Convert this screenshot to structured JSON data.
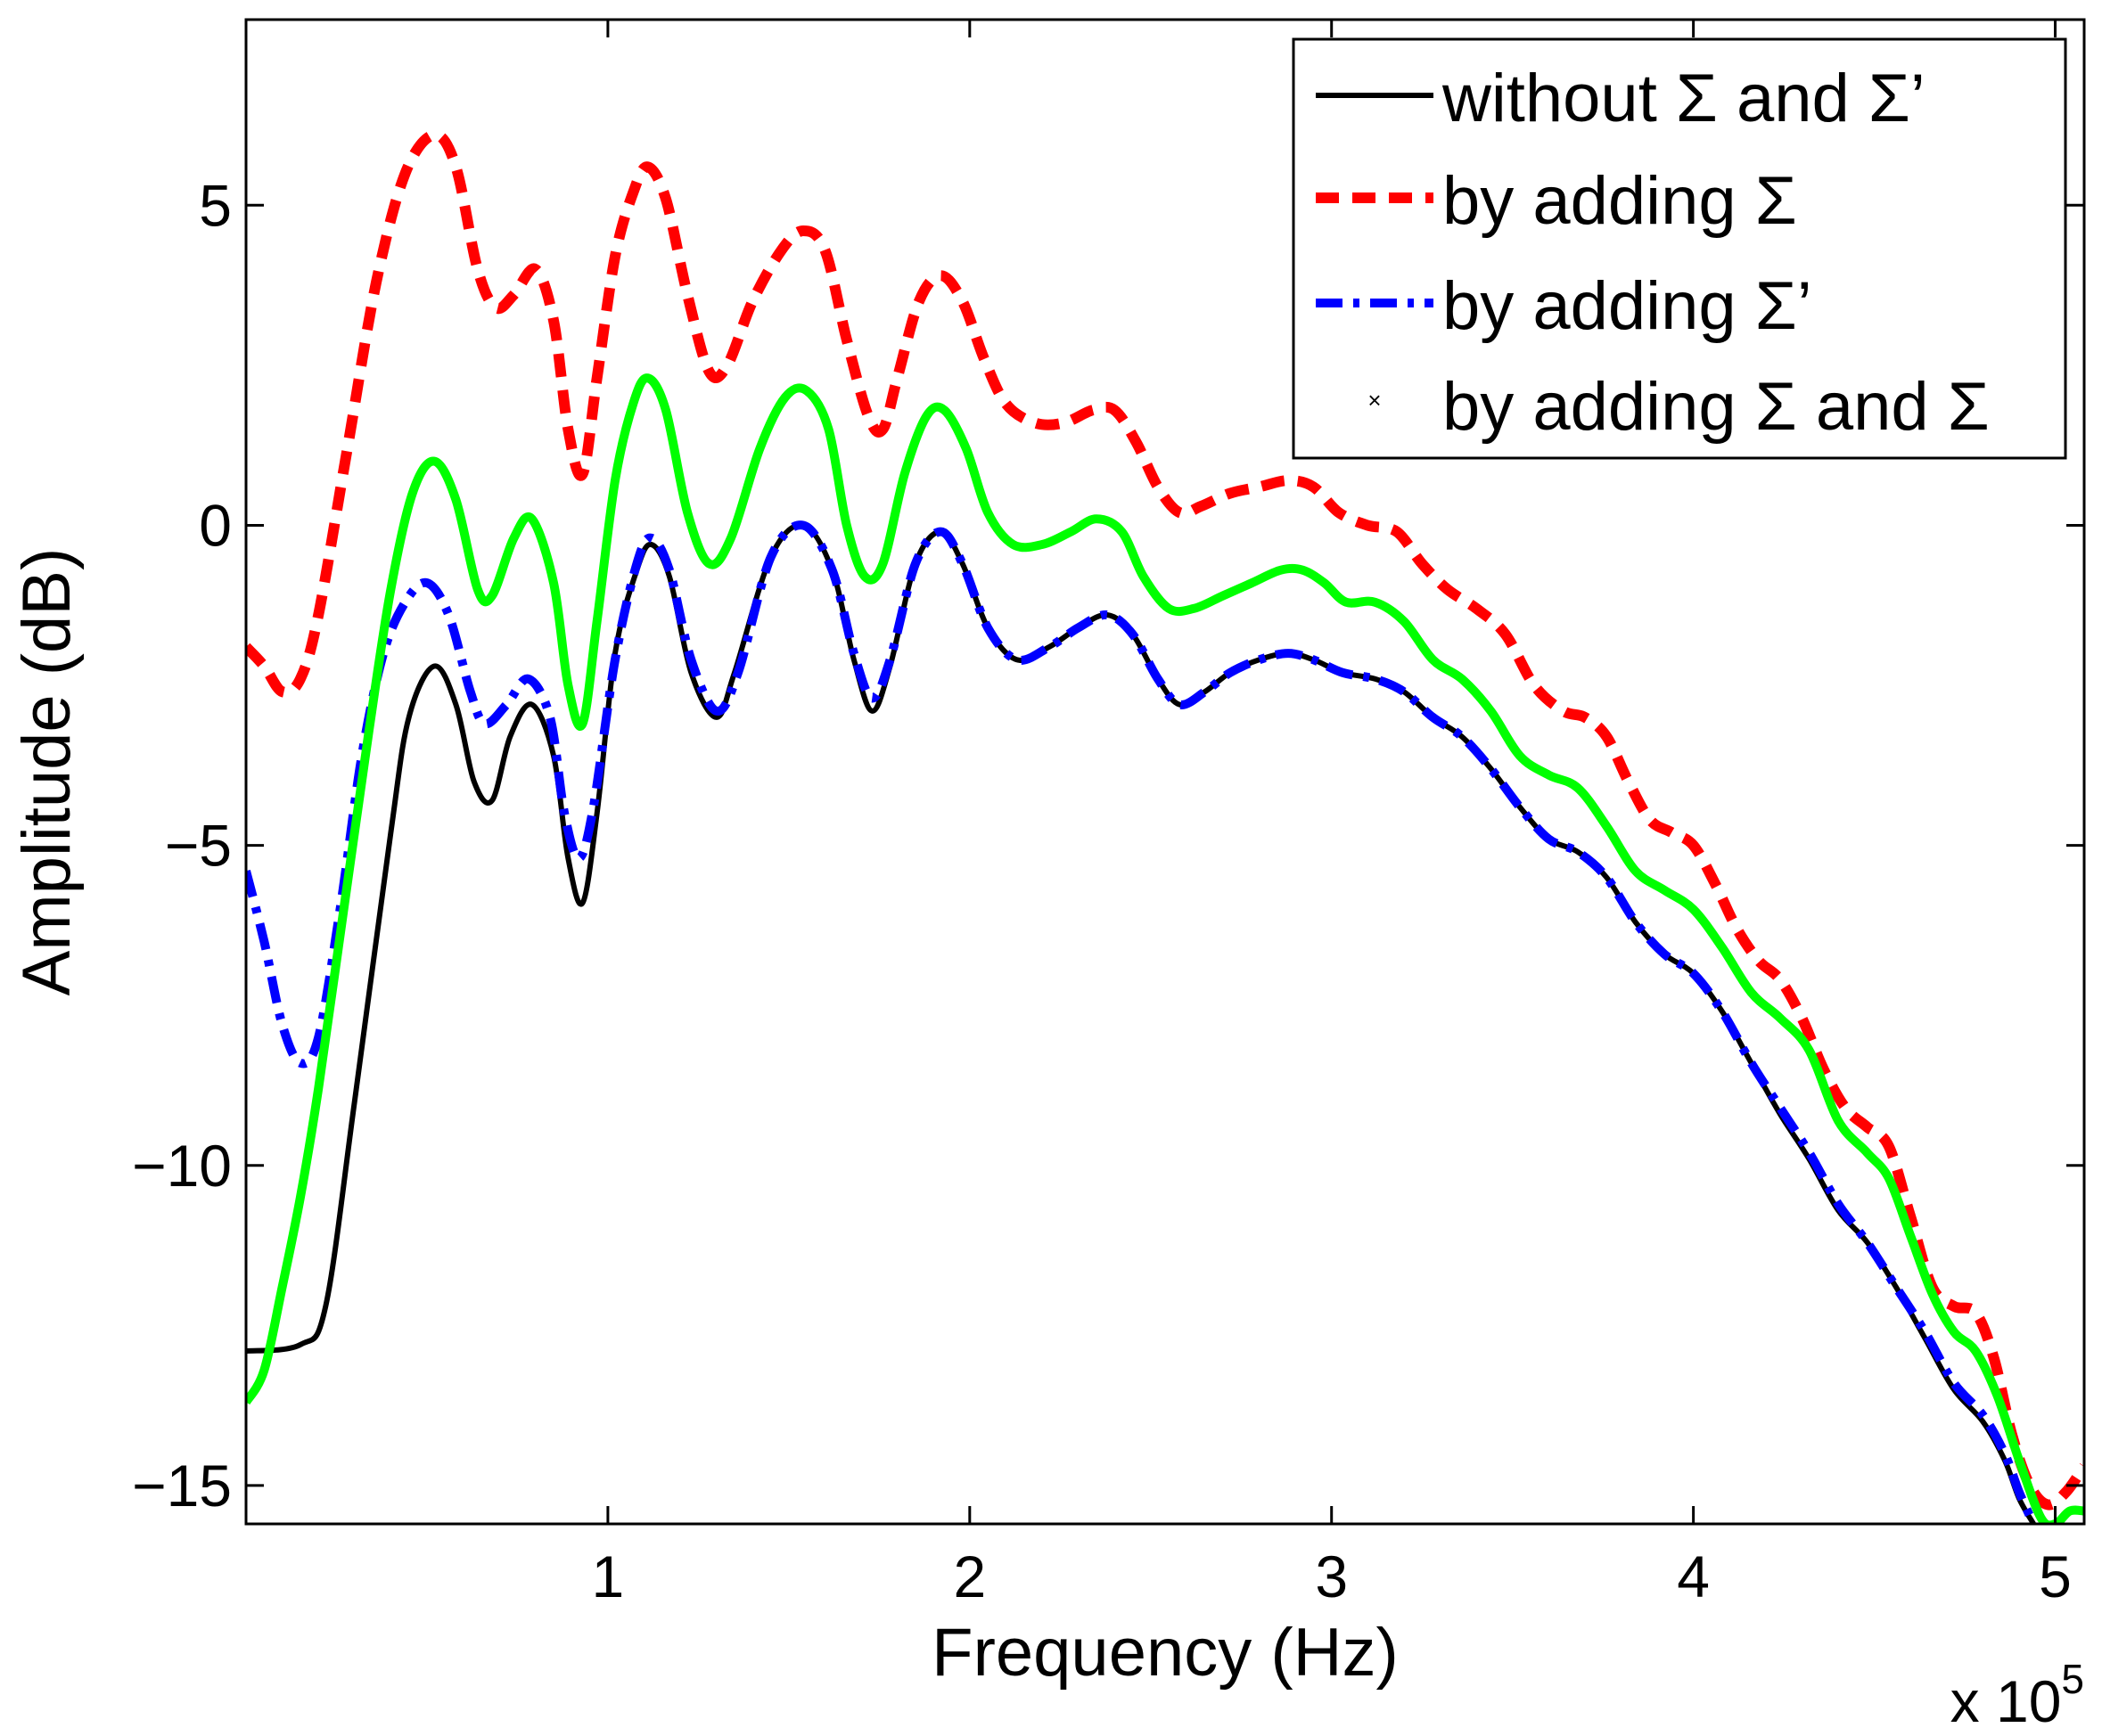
{
  "chart_data": {
    "type": "line",
    "title": "",
    "xlabel": "Frequency (Hz)",
    "ylabel": "Amplitude (dB)",
    "x_multiplier_label": "x 10",
    "x_multiplier_exponent": "5",
    "xlim": [
      0,
      5.08
    ],
    "ylim": [
      -15.6,
      7.9
    ],
    "xticks": [
      1,
      2,
      3,
      4,
      5
    ],
    "xtick_labels": [
      "1",
      "2",
      "3",
      "4",
      "5"
    ],
    "yticks": [
      5,
      0,
      -5,
      -10,
      -15
    ],
    "ytick_labels": [
      "5",
      "0",
      "−5",
      "−10",
      "−15"
    ],
    "grid": false,
    "legend_position": "top-right",
    "series": [
      {
        "name": "without Σ and Σ’",
        "color": "#000000",
        "style": "solid",
        "points": [
          [
            0.0,
            -12.9
          ],
          [
            0.15,
            -12.8
          ],
          [
            0.22,
            -12.2
          ],
          [
            0.3,
            -9.0
          ],
          [
            0.4,
            -4.8
          ],
          [
            0.45,
            -3.0
          ],
          [
            0.52,
            -2.2
          ],
          [
            0.58,
            -2.8
          ],
          [
            0.63,
            -4.0
          ],
          [
            0.68,
            -4.3
          ],
          [
            0.73,
            -3.3
          ],
          [
            0.79,
            -2.8
          ],
          [
            0.85,
            -3.6
          ],
          [
            0.89,
            -5.2
          ],
          [
            0.93,
            -5.9
          ],
          [
            0.97,
            -4.5
          ],
          [
            1.02,
            -2.0
          ],
          [
            1.08,
            -0.7
          ],
          [
            1.12,
            -0.3
          ],
          [
            1.17,
            -0.8
          ],
          [
            1.23,
            -2.3
          ],
          [
            1.3,
            -3.0
          ],
          [
            1.35,
            -2.3
          ],
          [
            1.45,
            -0.5
          ],
          [
            1.54,
            0.0
          ],
          [
            1.62,
            -0.7
          ],
          [
            1.68,
            -2.1
          ],
          [
            1.73,
            -2.9
          ],
          [
            1.78,
            -2.2
          ],
          [
            1.85,
            -0.6
          ],
          [
            1.92,
            -0.1
          ],
          [
            1.98,
            -0.6
          ],
          [
            2.05,
            -1.6
          ],
          [
            2.13,
            -2.1
          ],
          [
            2.22,
            -1.9
          ],
          [
            2.3,
            -1.6
          ],
          [
            2.38,
            -1.4
          ],
          [
            2.45,
            -1.7
          ],
          [
            2.52,
            -2.4
          ],
          [
            2.58,
            -2.8
          ],
          [
            2.65,
            -2.6
          ],
          [
            2.72,
            -2.3
          ],
          [
            2.8,
            -2.1
          ],
          [
            2.88,
            -2.0
          ],
          [
            2.95,
            -2.1
          ],
          [
            3.03,
            -2.3
          ],
          [
            3.12,
            -2.4
          ],
          [
            3.2,
            -2.6
          ],
          [
            3.28,
            -3.0
          ],
          [
            3.36,
            -3.3
          ],
          [
            3.44,
            -3.8
          ],
          [
            3.52,
            -4.4
          ],
          [
            3.6,
            -4.9
          ],
          [
            3.68,
            -5.1
          ],
          [
            3.76,
            -5.5
          ],
          [
            3.84,
            -6.2
          ],
          [
            3.92,
            -6.7
          ],
          [
            4.0,
            -7.0
          ],
          [
            4.08,
            -7.6
          ],
          [
            4.16,
            -8.4
          ],
          [
            4.24,
            -9.2
          ],
          [
            4.32,
            -9.9
          ],
          [
            4.4,
            -10.7
          ],
          [
            4.48,
            -11.2
          ],
          [
            4.56,
            -11.9
          ],
          [
            4.64,
            -12.7
          ],
          [
            4.72,
            -13.5
          ],
          [
            4.8,
            -14.0
          ],
          [
            4.86,
            -14.6
          ],
          [
            4.9,
            -15.2
          ],
          [
            4.94,
            -15.6
          ]
        ]
      },
      {
        "name": "by adding Σ",
        "color": "#ff0000",
        "style": "dashed",
        "points": [
          [
            0.0,
            -1.9
          ],
          [
            0.05,
            -2.2
          ],
          [
            0.1,
            -2.6
          ],
          [
            0.15,
            -2.4
          ],
          [
            0.2,
            -1.4
          ],
          [
            0.28,
            1.2
          ],
          [
            0.36,
            3.8
          ],
          [
            0.44,
            5.5
          ],
          [
            0.52,
            6.1
          ],
          [
            0.58,
            5.6
          ],
          [
            0.64,
            4.0
          ],
          [
            0.69,
            3.4
          ],
          [
            0.74,
            3.6
          ],
          [
            0.8,
            4.0
          ],
          [
            0.85,
            3.2
          ],
          [
            0.89,
            1.5
          ],
          [
            0.93,
            0.8
          ],
          [
            0.97,
            2.3
          ],
          [
            1.02,
            4.2
          ],
          [
            1.07,
            5.2
          ],
          [
            1.11,
            5.6
          ],
          [
            1.16,
            5.1
          ],
          [
            1.22,
            3.6
          ],
          [
            1.28,
            2.4
          ],
          [
            1.33,
            2.5
          ],
          [
            1.4,
            3.5
          ],
          [
            1.48,
            4.3
          ],
          [
            1.54,
            4.6
          ],
          [
            1.6,
            4.3
          ],
          [
            1.66,
            2.9
          ],
          [
            1.72,
            1.7
          ],
          [
            1.76,
            1.5
          ],
          [
            1.8,
            2.3
          ],
          [
            1.86,
            3.5
          ],
          [
            1.92,
            3.9
          ],
          [
            1.98,
            3.5
          ],
          [
            2.04,
            2.6
          ],
          [
            2.1,
            1.9
          ],
          [
            2.18,
            1.6
          ],
          [
            2.26,
            1.6
          ],
          [
            2.34,
            1.8
          ],
          [
            2.4,
            1.8
          ],
          [
            2.46,
            1.3
          ],
          [
            2.52,
            0.6
          ],
          [
            2.58,
            0.2
          ],
          [
            2.64,
            0.3
          ],
          [
            2.72,
            0.5
          ],
          [
            2.8,
            0.6
          ],
          [
            2.88,
            0.7
          ],
          [
            2.95,
            0.6
          ],
          [
            3.02,
            0.2
          ],
          [
            3.1,
            0.0
          ],
          [
            3.18,
            -0.1
          ],
          [
            3.25,
            -0.6
          ],
          [
            3.32,
            -1.0
          ],
          [
            3.4,
            -1.3
          ],
          [
            3.48,
            -1.7
          ],
          [
            3.56,
            -2.5
          ],
          [
            3.64,
            -2.9
          ],
          [
            3.7,
            -3.0
          ],
          [
            3.76,
            -3.3
          ],
          [
            3.82,
            -4.0
          ],
          [
            3.88,
            -4.6
          ],
          [
            3.94,
            -4.8
          ],
          [
            4.0,
            -5.0
          ],
          [
            4.06,
            -5.6
          ],
          [
            4.12,
            -6.3
          ],
          [
            4.18,
            -6.8
          ],
          [
            4.24,
            -7.1
          ],
          [
            4.3,
            -7.7
          ],
          [
            4.36,
            -8.5
          ],
          [
            4.42,
            -9.1
          ],
          [
            4.48,
            -9.4
          ],
          [
            4.54,
            -9.7
          ],
          [
            4.6,
            -10.8
          ],
          [
            4.66,
            -11.9
          ],
          [
            4.72,
            -12.2
          ],
          [
            4.78,
            -12.3
          ],
          [
            4.83,
            -13.0
          ],
          [
            4.88,
            -14.2
          ],
          [
            4.93,
            -15.0
          ],
          [
            4.98,
            -15.3
          ],
          [
            5.03,
            -15.1
          ],
          [
            5.08,
            -14.7
          ]
        ]
      },
      {
        "name": "by adding Σ’",
        "color": "#0000ff",
        "style": "dashdot",
        "points": [
          [
            0.0,
            -5.4
          ],
          [
            0.05,
            -6.5
          ],
          [
            0.1,
            -7.8
          ],
          [
            0.15,
            -8.4
          ],
          [
            0.2,
            -8.0
          ],
          [
            0.26,
            -6.0
          ],
          [
            0.32,
            -3.6
          ],
          [
            0.38,
            -2.0
          ],
          [
            0.44,
            -1.2
          ],
          [
            0.5,
            -0.9
          ],
          [
            0.56,
            -1.4
          ],
          [
            0.62,
            -2.6
          ],
          [
            0.66,
            -3.1
          ],
          [
            0.72,
            -2.8
          ],
          [
            0.78,
            -2.4
          ],
          [
            0.84,
            -3.0
          ],
          [
            0.88,
            -4.5
          ],
          [
            0.92,
            -5.2
          ],
          [
            0.96,
            -4.4
          ],
          [
            1.02,
            -2.1
          ],
          [
            1.08,
            -0.6
          ],
          [
            1.12,
            -0.2
          ],
          [
            1.17,
            -0.7
          ],
          [
            1.23,
            -2.1
          ],
          [
            1.3,
            -2.9
          ],
          [
            1.36,
            -2.3
          ],
          [
            1.45,
            -0.5
          ],
          [
            1.54,
            0.0
          ],
          [
            1.62,
            -0.7
          ],
          [
            1.68,
            -2.0
          ],
          [
            1.73,
            -2.7
          ],
          [
            1.78,
            -2.1
          ],
          [
            1.85,
            -0.6
          ],
          [
            1.92,
            -0.1
          ],
          [
            1.98,
            -0.6
          ],
          [
            2.05,
            -1.6
          ],
          [
            2.13,
            -2.1
          ],
          [
            2.22,
            -1.9
          ],
          [
            2.3,
            -1.6
          ],
          [
            2.38,
            -1.4
          ],
          [
            2.45,
            -1.7
          ],
          [
            2.52,
            -2.4
          ],
          [
            2.58,
            -2.8
          ],
          [
            2.65,
            -2.6
          ],
          [
            2.72,
            -2.3
          ],
          [
            2.8,
            -2.1
          ],
          [
            2.88,
            -2.0
          ],
          [
            2.95,
            -2.1
          ],
          [
            3.03,
            -2.3
          ],
          [
            3.12,
            -2.4
          ],
          [
            3.2,
            -2.6
          ],
          [
            3.28,
            -3.0
          ],
          [
            3.36,
            -3.3
          ],
          [
            3.44,
            -3.8
          ],
          [
            3.52,
            -4.4
          ],
          [
            3.6,
            -4.9
          ],
          [
            3.68,
            -5.1
          ],
          [
            3.76,
            -5.5
          ],
          [
            3.84,
            -6.2
          ],
          [
            3.92,
            -6.7
          ],
          [
            4.0,
            -7.0
          ],
          [
            4.08,
            -7.6
          ],
          [
            4.16,
            -8.4
          ],
          [
            4.24,
            -9.1
          ],
          [
            4.32,
            -9.8
          ],
          [
            4.4,
            -10.6
          ],
          [
            4.48,
            -11.2
          ],
          [
            4.56,
            -11.9
          ],
          [
            4.64,
            -12.6
          ],
          [
            4.72,
            -13.4
          ],
          [
            4.8,
            -13.9
          ],
          [
            4.86,
            -14.5
          ],
          [
            4.9,
            -15.1
          ],
          [
            4.94,
            -15.6
          ]
        ]
      },
      {
        "name": "by adding Σ and Σ",
        "color": "#00ff00",
        "style": "marker-x",
        "points": [
          [
            0.0,
            -13.7
          ],
          [
            0.05,
            -13.2
          ],
          [
            0.1,
            -11.9
          ],
          [
            0.15,
            -10.5
          ],
          [
            0.2,
            -8.8
          ],
          [
            0.27,
            -6.0
          ],
          [
            0.34,
            -3.2
          ],
          [
            0.4,
            -1.0
          ],
          [
            0.46,
            0.5
          ],
          [
            0.52,
            1.0
          ],
          [
            0.58,
            0.4
          ],
          [
            0.64,
            -1.0
          ],
          [
            0.68,
            -1.1
          ],
          [
            0.74,
            -0.2
          ],
          [
            0.79,
            0.1
          ],
          [
            0.85,
            -0.9
          ],
          [
            0.89,
            -2.5
          ],
          [
            0.93,
            -3.1
          ],
          [
            0.97,
            -1.5
          ],
          [
            1.02,
            0.7
          ],
          [
            1.07,
            1.9
          ],
          [
            1.11,
            2.3
          ],
          [
            1.16,
            1.8
          ],
          [
            1.22,
            0.2
          ],
          [
            1.28,
            -0.6
          ],
          [
            1.34,
            -0.2
          ],
          [
            1.42,
            1.2
          ],
          [
            1.49,
            2.0
          ],
          [
            1.55,
            2.1
          ],
          [
            1.61,
            1.5
          ],
          [
            1.66,
            0.0
          ],
          [
            1.71,
            -0.8
          ],
          [
            1.76,
            -0.6
          ],
          [
            1.82,
            0.8
          ],
          [
            1.88,
            1.7
          ],
          [
            1.93,
            1.8
          ],
          [
            1.99,
            1.2
          ],
          [
            2.05,
            0.2
          ],
          [
            2.12,
            -0.3
          ],
          [
            2.2,
            -0.3
          ],
          [
            2.28,
            -0.1
          ],
          [
            2.35,
            0.1
          ],
          [
            2.42,
            -0.1
          ],
          [
            2.48,
            -0.8
          ],
          [
            2.55,
            -1.3
          ],
          [
            2.62,
            -1.3
          ],
          [
            2.7,
            -1.1
          ],
          [
            2.78,
            -0.9
          ],
          [
            2.86,
            -0.7
          ],
          [
            2.92,
            -0.7
          ],
          [
            2.98,
            -0.9
          ],
          [
            3.04,
            -1.2
          ],
          [
            3.12,
            -1.2
          ],
          [
            3.2,
            -1.5
          ],
          [
            3.28,
            -2.1
          ],
          [
            3.36,
            -2.4
          ],
          [
            3.44,
            -2.9
          ],
          [
            3.52,
            -3.6
          ],
          [
            3.6,
            -3.9
          ],
          [
            3.68,
            -4.1
          ],
          [
            3.76,
            -4.7
          ],
          [
            3.84,
            -5.4
          ],
          [
            3.92,
            -5.7
          ],
          [
            4.0,
            -6.0
          ],
          [
            4.08,
            -6.6
          ],
          [
            4.16,
            -7.3
          ],
          [
            4.24,
            -7.7
          ],
          [
            4.32,
            -8.2
          ],
          [
            4.4,
            -9.3
          ],
          [
            4.48,
            -9.8
          ],
          [
            4.54,
            -10.2
          ],
          [
            4.6,
            -11.1
          ],
          [
            4.66,
            -12.0
          ],
          [
            4.72,
            -12.6
          ],
          [
            4.78,
            -12.9
          ],
          [
            4.84,
            -13.6
          ],
          [
            4.9,
            -14.6
          ],
          [
            4.96,
            -15.5
          ],
          [
            5.0,
            -15.6
          ],
          [
            5.04,
            -15.4
          ],
          [
            5.08,
            -15.4
          ]
        ]
      }
    ]
  }
}
